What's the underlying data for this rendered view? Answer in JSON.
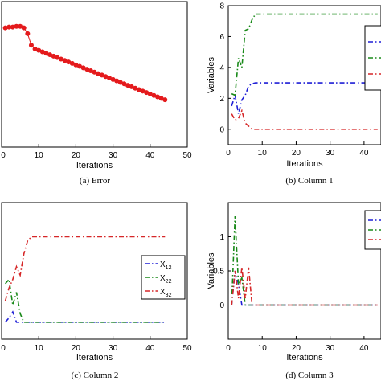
{
  "chart_data": [
    {
      "type": "line",
      "panel": "a",
      "caption": "(a) Error",
      "xlabel": "Iterations",
      "ylabel": "",
      "xlim": [
        0,
        50
      ],
      "ylim": [
        0,
        1
      ],
      "xticks": [
        "0",
        "10",
        "20",
        "30",
        "40",
        "50"
      ],
      "yticks": [],
      "grid": false,
      "series": [
        {
          "color": "#e41a1c",
          "style": "dots-line",
          "x": [
            1,
            2,
            3,
            4,
            5,
            6,
            7,
            8,
            9,
            10,
            11,
            12,
            13,
            14,
            15,
            16,
            17,
            18,
            19,
            20,
            21,
            22,
            23,
            24,
            25,
            26,
            27,
            28,
            29,
            30,
            31,
            32,
            33,
            34,
            35,
            36,
            37,
            38,
            39,
            40,
            41,
            42,
            43,
            44
          ],
          "y": [
            0.82,
            0.825,
            0.825,
            0.83,
            0.83,
            0.82,
            0.78,
            0.7,
            0.675,
            0.665,
            0.655,
            0.645,
            0.635,
            0.625,
            0.615,
            0.605,
            0.595,
            0.585,
            0.575,
            0.565,
            0.555,
            0.545,
            0.535,
            0.525,
            0.515,
            0.505,
            0.495,
            0.485,
            0.475,
            0.465,
            0.455,
            0.445,
            0.435,
            0.425,
            0.415,
            0.405,
            0.395,
            0.385,
            0.375,
            0.365,
            0.355,
            0.345,
            0.335,
            0.325
          ]
        }
      ]
    },
    {
      "type": "line",
      "panel": "b",
      "caption": "(b) Column 1",
      "xlabel": "Iterations",
      "ylabel": "Variables",
      "xlim": [
        0,
        45
      ],
      "ylim": [
        -1,
        8
      ],
      "xticks": [
        "0",
        "10",
        "20",
        "30",
        "40"
      ],
      "yticks": [
        "0",
        "2",
        "4",
        "6",
        "8"
      ],
      "grid": false,
      "legend": [],
      "series": [
        {
          "color": "#1f1fd6",
          "x": [
            1,
            2,
            3,
            4,
            5,
            6,
            7,
            8,
            10,
            15,
            20,
            25,
            30,
            35,
            40,
            44
          ],
          "y": [
            1.5,
            2.2,
            1.0,
            1.9,
            2.2,
            2.8,
            2.95,
            3.0,
            3.0,
            3.0,
            3.0,
            3.0,
            3.0,
            3.0,
            3.0,
            3.0
          ]
        },
        {
          "color": "#1a8a1a",
          "x": [
            1,
            2,
            3,
            4,
            5,
            6,
            7,
            8,
            10,
            15,
            20,
            25,
            30,
            35,
            40,
            44
          ],
          "y": [
            2.3,
            2.2,
            4.6,
            4.0,
            6.4,
            6.5,
            7.1,
            7.45,
            7.45,
            7.45,
            7.45,
            7.45,
            7.45,
            7.45,
            7.45,
            7.45
          ]
        },
        {
          "color": "#d62728",
          "x": [
            1,
            2,
            3,
            4,
            5,
            6,
            7,
            10,
            15,
            20,
            25,
            30,
            35,
            40,
            44
          ],
          "y": [
            1.0,
            0.6,
            0.7,
            1.2,
            0.4,
            0.2,
            0.0,
            0.0,
            0.0,
            0.0,
            0.0,
            0.0,
            0.0,
            0.0,
            0.0
          ]
        }
      ]
    },
    {
      "type": "line",
      "panel": "c",
      "caption": "(c) Column 2",
      "xlabel": "Iterations",
      "ylabel": "",
      "xlim": [
        0,
        50
      ],
      "ylim": [
        -0.2,
        1.4
      ],
      "xticks": [
        "0",
        "10",
        "20",
        "30",
        "40",
        "50"
      ],
      "yticks": [],
      "grid": false,
      "legend": [
        {
          "base": "X",
          "sub": "12"
        },
        {
          "base": "X",
          "sub": "22"
        },
        {
          "base": "X",
          "sub": "32"
        }
      ],
      "series": [
        {
          "color": "#1f1fd6",
          "x": [
            1,
            2,
            3,
            4,
            5,
            6,
            7,
            10,
            15,
            20,
            25,
            30,
            35,
            40,
            44
          ],
          "y": [
            0.0,
            0.05,
            0.12,
            0.0,
            0.0,
            0.0,
            0.0,
            0.0,
            0.0,
            0.0,
            0.0,
            0.0,
            0.0,
            0.0,
            0.0
          ]
        },
        {
          "color": "#1a8a1a",
          "x": [
            1,
            2,
            3,
            4,
            5,
            6,
            7,
            10,
            15,
            20,
            25,
            30,
            35,
            40,
            44
          ],
          "y": [
            0.45,
            0.5,
            0.2,
            0.35,
            0.1,
            0.0,
            0.0,
            0.0,
            0.0,
            0.0,
            0.0,
            0.0,
            0.0,
            0.0,
            0.0
          ]
        },
        {
          "color": "#d62728",
          "x": [
            1,
            2,
            3,
            4,
            5,
            6,
            7,
            8,
            10,
            15,
            20,
            25,
            30,
            35,
            40,
            44
          ],
          "y": [
            0.25,
            0.4,
            0.5,
            0.65,
            0.55,
            0.8,
            0.95,
            1.0,
            1.0,
            1.0,
            1.0,
            1.0,
            1.0,
            1.0,
            1.0,
            1.0
          ]
        }
      ]
    },
    {
      "type": "line",
      "panel": "d",
      "caption": "(d) Column 3",
      "xlabel": "Iterations",
      "ylabel": "Variables",
      "xlim": [
        0,
        45
      ],
      "ylim": [
        -0.5,
        1.5
      ],
      "xticks": [
        "0",
        "10",
        "20",
        "30",
        "40"
      ],
      "yticks": [
        "0",
        "0.5",
        "1"
      ],
      "grid": false,
      "legend": [],
      "series": [
        {
          "color": "#1f1fd6",
          "x": [
            1,
            2,
            3,
            4,
            5,
            6,
            10,
            15,
            20,
            25,
            30,
            35,
            40,
            44
          ],
          "y": [
            0.0,
            0.5,
            0.3,
            0.0,
            0.0,
            0.0,
            0.0,
            0.0,
            0.0,
            0.0,
            0.0,
            0.0,
            0.0,
            0.0
          ]
        },
        {
          "color": "#1a8a1a",
          "x": [
            1,
            2,
            3,
            4,
            5,
            6,
            10,
            15,
            20,
            25,
            30,
            35,
            40,
            44
          ],
          "y": [
            0.0,
            1.3,
            0.3,
            0.4,
            0.0,
            0.0,
            0.0,
            0.0,
            0.0,
            0.0,
            0.0,
            0.0,
            0.0,
            0.0
          ]
        },
        {
          "color": "#d62728",
          "x": [
            1,
            2,
            3,
            4,
            5,
            6,
            7,
            10,
            15,
            20,
            25,
            30,
            35,
            40,
            44
          ],
          "y": [
            0.0,
            0.5,
            0.1,
            0.55,
            0.1,
            0.55,
            0.0,
            0.0,
            0.0,
            0.0,
            0.0,
            0.0,
            0.0,
            0.0,
            0.0
          ]
        }
      ]
    }
  ]
}
